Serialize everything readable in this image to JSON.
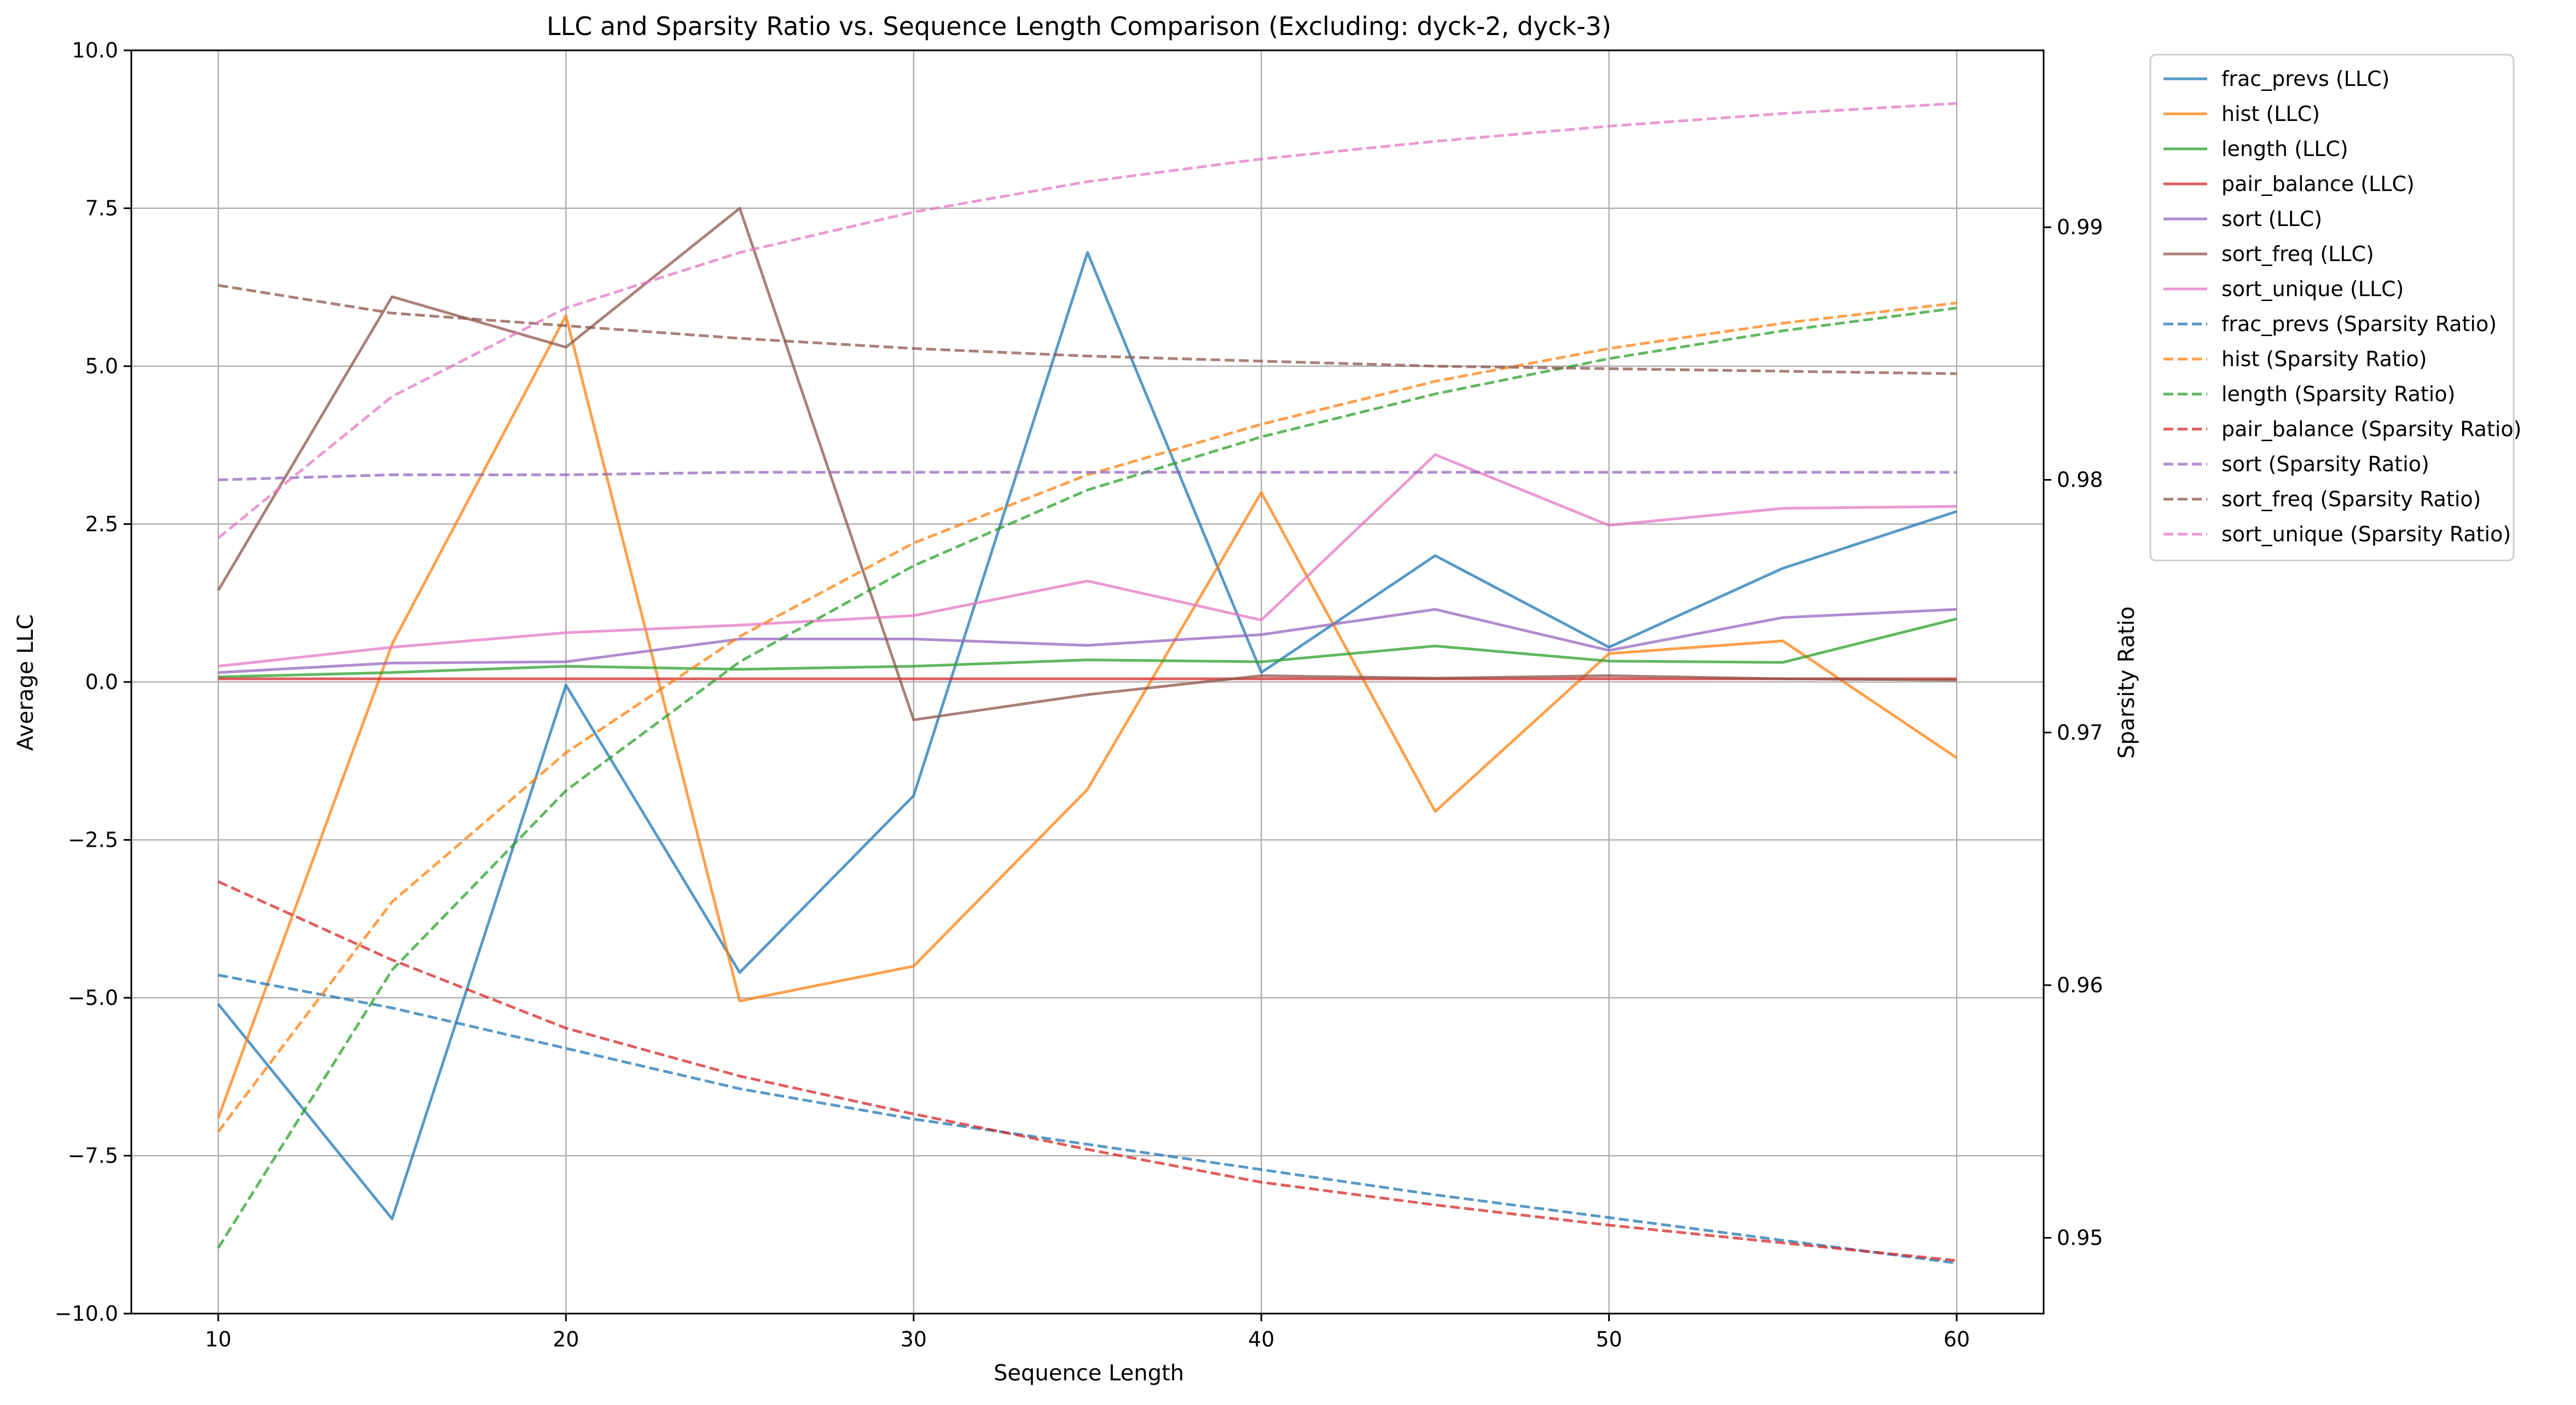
{
  "chart_data": {
    "type": "line",
    "title": "LLC and Sparsity Ratio vs. Sequence Length Comparison (Excluding: dyck-2, dyck-3)",
    "xlabel": "Sequence Length",
    "ylabel": "Average LLC",
    "y2label": "Sparsity Ratio",
    "xlim": [
      7.5,
      62.5
    ],
    "ylim": [
      -10,
      10
    ],
    "y2lim": [
      0.947,
      0.997
    ],
    "xticks": [
      "10",
      "20",
      "30",
      "40",
      "50",
      "60"
    ],
    "yticks": [
      "10.0",
      "7.5",
      "5.0",
      "2.5",
      "0.0",
      "−2.5",
      "−5.0",
      "−7.5",
      "−10.0"
    ],
    "y2ticks": [
      "0.95",
      "0.96",
      "0.97",
      "0.98",
      "0.99"
    ],
    "grid": true,
    "legend_position": "outside-top-right",
    "x": [
      10,
      15,
      20,
      25,
      30,
      35,
      40,
      45,
      50,
      55,
      60
    ],
    "series": [
      {
        "name": "frac_prevs (LLC)",
        "axis": "left",
        "style": "solid",
        "color": "#1f77b4",
        "values": [
          -5.1,
          -8.5,
          -0.05,
          -4.6,
          -1.8,
          6.8,
          0.15,
          2.0,
          0.55,
          1.8,
          2.7
        ]
      },
      {
        "name": "hist (LLC)",
        "axis": "left",
        "style": "solid",
        "color": "#ff7f0e",
        "values": [
          -6.9,
          0.6,
          5.8,
          -5.05,
          -4.5,
          -1.7,
          3.0,
          -2.05,
          0.45,
          0.65,
          -1.2
        ]
      },
      {
        "name": "length (LLC)",
        "axis": "left",
        "style": "solid",
        "color": "#2ca02c",
        "values": [
          0.08,
          0.15,
          0.25,
          0.2,
          0.25,
          0.35,
          0.32,
          0.57,
          0.33,
          0.31,
          1.0
        ]
      },
      {
        "name": "pair_balance (LLC)",
        "axis": "left",
        "style": "solid",
        "color": "#d62728",
        "values": [
          0.05,
          0.05,
          0.05,
          0.05,
          0.05,
          0.05,
          0.05,
          0.05,
          0.05,
          0.05,
          0.05
        ]
      },
      {
        "name": "sort (LLC)",
        "axis": "left",
        "style": "solid",
        "color": "#9467bd",
        "values": [
          0.15,
          0.3,
          0.32,
          0.68,
          0.68,
          0.58,
          0.75,
          1.15,
          0.5,
          1.02,
          1.15
        ]
      },
      {
        "name": "sort_freq (LLC)",
        "axis": "left",
        "style": "solid",
        "color": "#8c564b",
        "values": [
          1.45,
          6.1,
          5.3,
          7.5,
          -0.6,
          -0.2,
          0.1,
          0.06,
          0.1,
          0.05,
          0.03
        ]
      },
      {
        "name": "sort_unique (LLC)",
        "axis": "left",
        "style": "solid",
        "color": "#e377c2",
        "values": [
          0.25,
          0.55,
          0.78,
          0.9,
          1.05,
          1.6,
          0.98,
          3.6,
          2.48,
          2.75,
          2.78
        ]
      },
      {
        "name": "frac_prevs (Sparsity Ratio)",
        "axis": "right",
        "style": "dashed",
        "color": "#1f77b4",
        "values": [
          0.9604,
          0.9591,
          0.9575,
          0.9559,
          0.9547,
          0.9537,
          0.9527,
          0.9517,
          0.9508,
          0.9499,
          0.949
        ]
      },
      {
        "name": "hist (Sparsity Ratio)",
        "axis": "right",
        "style": "dashed",
        "color": "#ff7f0e",
        "values": [
          0.9542,
          0.9633,
          0.9692,
          0.9738,
          0.9775,
          0.9802,
          0.9822,
          0.9839,
          0.9852,
          0.9862,
          0.987
        ]
      },
      {
        "name": "length (Sparsity Ratio)",
        "axis": "right",
        "style": "dashed",
        "color": "#2ca02c",
        "values": [
          0.9496,
          0.9606,
          0.9677,
          0.9728,
          0.9766,
          0.9796,
          0.9817,
          0.9834,
          0.9848,
          0.9859,
          0.9868
        ]
      },
      {
        "name": "pair_balance (Sparsity Ratio)",
        "axis": "right",
        "style": "dashed",
        "color": "#d62728",
        "values": [
          0.9641,
          0.961,
          0.9583,
          0.9564,
          0.9549,
          0.9535,
          0.9522,
          0.9513,
          0.9505,
          0.9498,
          0.9491
        ]
      },
      {
        "name": "sort (Sparsity Ratio)",
        "axis": "right",
        "style": "dashed",
        "color": "#9467bd",
        "values": [
          0.98,
          0.9802,
          0.9802,
          0.9803,
          0.9803,
          0.9803,
          0.9803,
          0.9803,
          0.9803,
          0.9803,
          0.9803
        ]
      },
      {
        "name": "sort_freq (Sparsity Ratio)",
        "axis": "right",
        "style": "dashed",
        "color": "#8c564b",
        "values": [
          0.9877,
          0.9866,
          0.9861,
          0.9856,
          0.9852,
          0.9849,
          0.9847,
          0.9845,
          0.9844,
          0.9843,
          0.9842
        ]
      },
      {
        "name": "sort_unique (Sparsity Ratio)",
        "axis": "right",
        "style": "dashed",
        "color": "#e377c2",
        "values": [
          0.9777,
          0.9833,
          0.9868,
          0.989,
          0.9906,
          0.9918,
          0.9927,
          0.9934,
          0.994,
          0.9945,
          0.9949
        ]
      }
    ]
  }
}
